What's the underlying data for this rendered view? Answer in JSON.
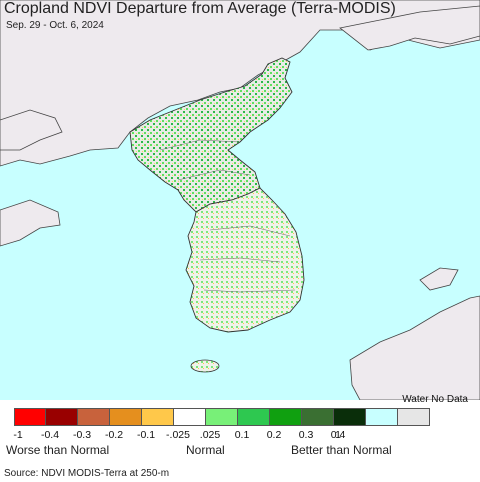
{
  "title": "Cropland NDVI Departure from Average (Terra-MODIS)",
  "subtitle": "Sep. 29 - Oct. 6, 2024",
  "legend": {
    "water_label": "Water No Data",
    "bins": [
      {
        "color": "#ff0000"
      },
      {
        "color": "#990000"
      },
      {
        "color": "#c8623c"
      },
      {
        "color": "#e58f1e"
      },
      {
        "color": "#ffc84a"
      },
      {
        "color": "#ffffff"
      },
      {
        "color": "#78f078"
      },
      {
        "color": "#2ec850"
      },
      {
        "color": "#10a010"
      },
      {
        "color": "#3a6f32"
      },
      {
        "color": "#0a2e0a"
      },
      {
        "color": "#c8ffff"
      },
      {
        "color": "#e6e6e6"
      }
    ],
    "ticks": [
      "-1",
      "-0.4",
      "-0.3",
      "-0.2",
      "-0.1",
      "-.025",
      ".025",
      "0.1",
      "0.2",
      "0.3",
      "0.4",
      "1"
    ],
    "categories": {
      "worse": "Worse than Normal",
      "normal": "Normal",
      "better": "Better than Normal"
    }
  },
  "source": "Source: NDVI MODIS-Terra at 250-m",
  "colors": {
    "ocean": "#c8ffff",
    "land_nodata": "#eeeaee",
    "border": "#555555"
  }
}
